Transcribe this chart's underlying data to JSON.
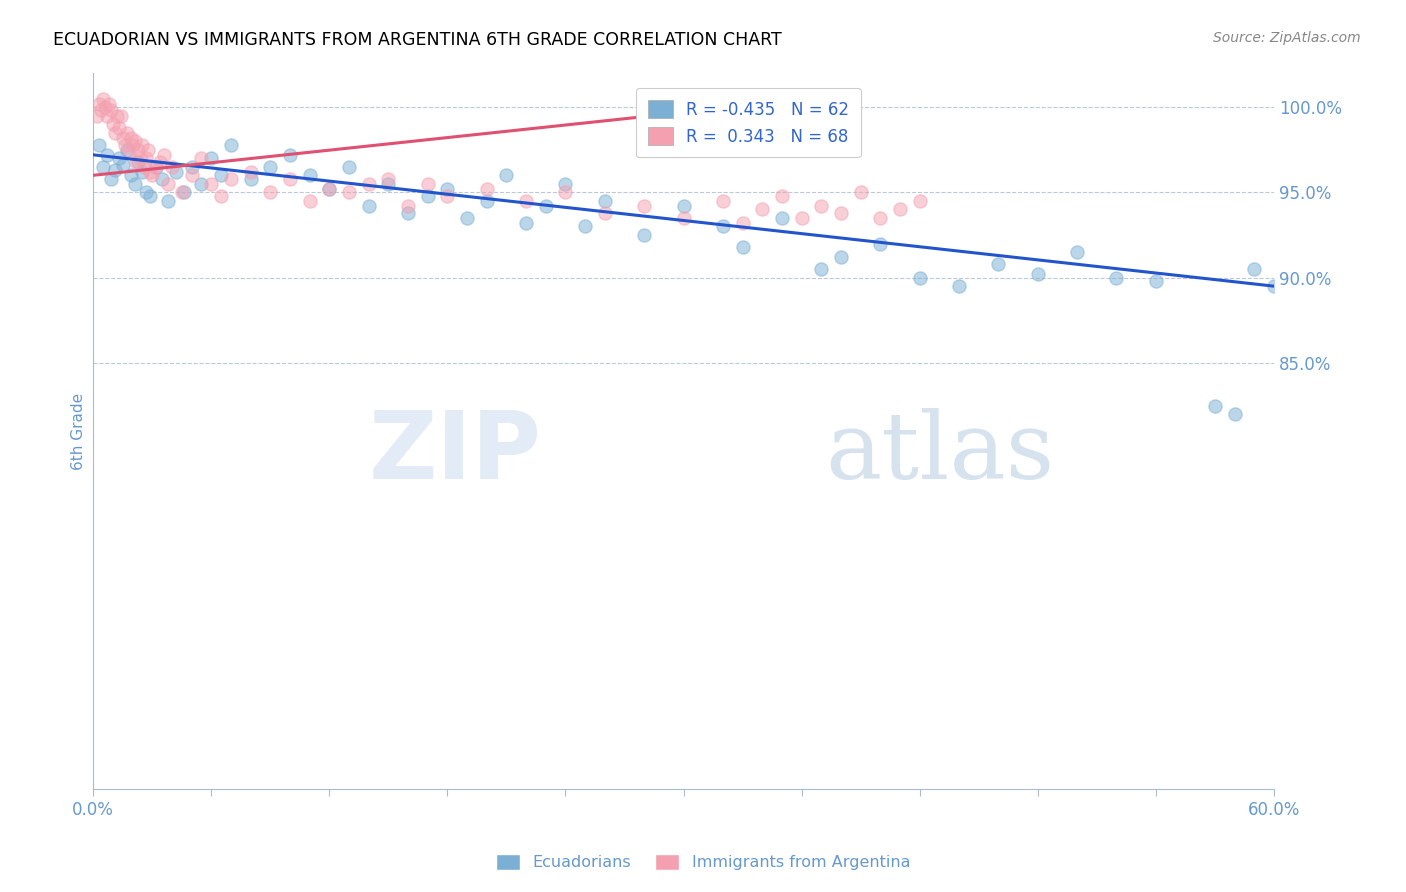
{
  "title": "ECUADORIAN VS IMMIGRANTS FROM ARGENTINA 6TH GRADE CORRELATION CHART",
  "source": "Source: ZipAtlas.com",
  "ylabel": "6th Grade",
  "watermark_zip": "ZIP",
  "watermark_atlas": "atlas",
  "xlim": [
    0.0,
    60.0
  ],
  "ylim": [
    60.0,
    102.0
  ],
  "yticks": [
    85.0,
    90.0,
    95.0,
    100.0
  ],
  "xticks": [
    0.0,
    6.0,
    12.0,
    18.0,
    24.0,
    30.0,
    36.0,
    42.0,
    48.0,
    54.0,
    60.0
  ],
  "blue_color": "#7BAFD4",
  "pink_color": "#F4A0B0",
  "blue_line_color": "#2255CC",
  "pink_line_color": "#E05070",
  "legend_text_color": "#3366CC",
  "axis_label_color": "#6699CC",
  "R_blue": -0.435,
  "N_blue": 62,
  "R_pink": 0.343,
  "N_pink": 68,
  "blue_trend_x0": 0.0,
  "blue_trend_y0": 97.2,
  "blue_trend_x1": 60.0,
  "blue_trend_y1": 89.5,
  "pink_trend_x0": 0.0,
  "pink_trend_y0": 96.0,
  "pink_trend_x1": 35.0,
  "pink_trend_y1": 100.3,
  "blue_scatter_x": [
    0.3,
    0.5,
    0.7,
    0.9,
    1.1,
    1.3,
    1.5,
    1.7,
    1.9,
    2.1,
    2.3,
    2.5,
    2.7,
    2.9,
    3.2,
    3.5,
    3.8,
    4.2,
    4.6,
    5.0,
    5.5,
    6.0,
    6.5,
    7.0,
    8.0,
    9.0,
    10.0,
    11.0,
    12.0,
    13.0,
    14.0,
    15.0,
    16.0,
    17.0,
    18.0,
    19.0,
    20.0,
    21.0,
    22.0,
    23.0,
    24.0,
    25.0,
    26.0,
    28.0,
    30.0,
    32.0,
    33.0,
    35.0,
    37.0,
    38.0,
    40.0,
    42.0,
    44.0,
    46.0,
    48.0,
    50.0,
    52.0,
    54.0,
    57.0,
    58.0,
    59.0,
    60.0
  ],
  "blue_scatter_y": [
    97.8,
    96.5,
    97.2,
    95.8,
    96.3,
    97.0,
    96.6,
    97.5,
    96.0,
    95.5,
    96.8,
    96.2,
    95.0,
    94.8,
    96.5,
    95.8,
    94.5,
    96.2,
    95.0,
    96.5,
    95.5,
    97.0,
    96.0,
    97.8,
    95.8,
    96.5,
    97.2,
    96.0,
    95.2,
    96.5,
    94.2,
    95.5,
    93.8,
    94.8,
    95.2,
    93.5,
    94.5,
    96.0,
    93.2,
    94.2,
    95.5,
    93.0,
    94.5,
    92.5,
    94.2,
    93.0,
    91.8,
    93.5,
    90.5,
    91.2,
    92.0,
    90.0,
    89.5,
    90.8,
    90.2,
    91.5,
    90.0,
    89.8,
    82.5,
    82.0,
    90.5,
    89.5
  ],
  "pink_scatter_x": [
    0.2,
    0.3,
    0.4,
    0.5,
    0.6,
    0.7,
    0.8,
    0.9,
    1.0,
    1.1,
    1.2,
    1.3,
    1.4,
    1.5,
    1.6,
    1.7,
    1.8,
    1.9,
    2.0,
    2.1,
    2.2,
    2.3,
    2.4,
    2.5,
    2.6,
    2.7,
    2.8,
    2.9,
    3.0,
    3.2,
    3.4,
    3.6,
    3.8,
    4.0,
    4.5,
    5.0,
    5.5,
    6.0,
    6.5,
    7.0,
    8.0,
    9.0,
    10.0,
    11.0,
    12.0,
    13.0,
    14.0,
    15.0,
    16.0,
    17.0,
    18.0,
    20.0,
    22.0,
    24.0,
    26.0,
    28.0,
    30.0,
    32.0,
    33.0,
    34.0,
    35.0,
    36.0,
    37.0,
    38.0,
    39.0,
    40.0,
    41.0,
    42.0
  ],
  "pink_scatter_y": [
    99.5,
    100.2,
    99.8,
    100.5,
    100.0,
    99.5,
    100.2,
    99.8,
    99.0,
    98.5,
    99.5,
    98.8,
    99.5,
    98.2,
    97.8,
    98.5,
    97.5,
    98.2,
    97.8,
    98.0,
    96.8,
    97.5,
    97.0,
    97.8,
    96.5,
    97.0,
    97.5,
    96.2,
    96.0,
    96.5,
    96.8,
    97.2,
    95.5,
    96.5,
    95.0,
    96.0,
    97.0,
    95.5,
    94.8,
    95.8,
    96.2,
    95.0,
    95.8,
    94.5,
    95.2,
    95.0,
    95.5,
    95.8,
    94.2,
    95.5,
    94.8,
    95.2,
    94.5,
    95.0,
    93.8,
    94.2,
    93.5,
    94.5,
    93.2,
    94.0,
    94.8,
    93.5,
    94.2,
    93.8,
    95.0,
    93.5,
    94.0,
    94.5
  ]
}
